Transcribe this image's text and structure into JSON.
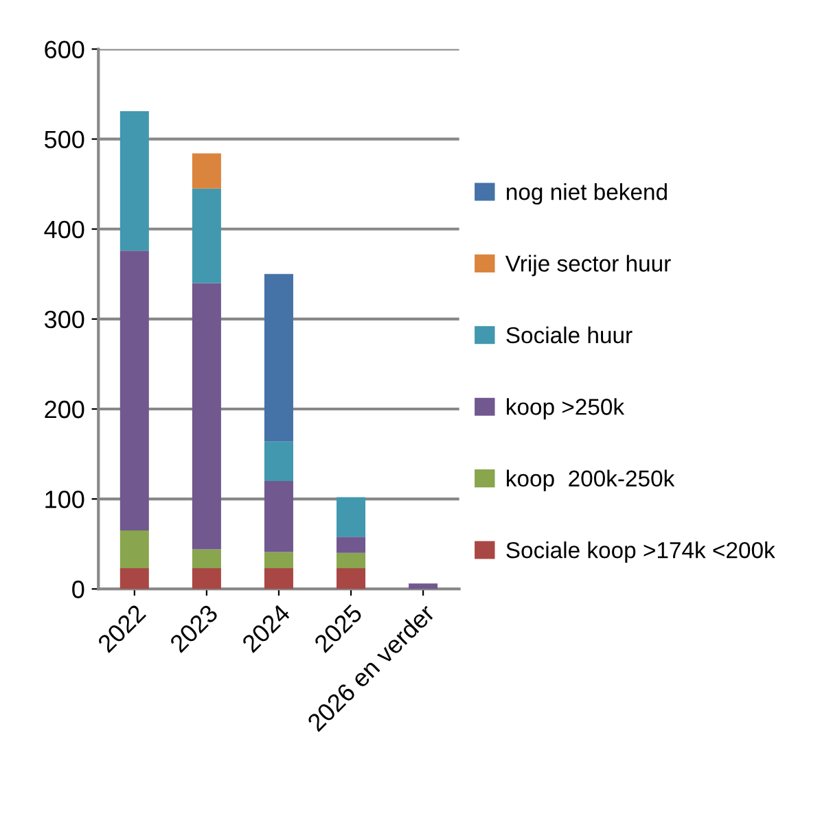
{
  "chart_data": {
    "type": "bar",
    "stacked": true,
    "categories": [
      "2022",
      "2023",
      "2024",
      "2025",
      "2026 en verder"
    ],
    "series": [
      {
        "name": "Sociale koop >174k <200k",
        "color": "#a94744",
        "values": [
          23,
          23,
          23,
          23,
          null
        ]
      },
      {
        "name": "koop  200k-250k",
        "color": "#89a54e",
        "values": [
          42,
          21,
          18,
          17,
          null
        ]
      },
      {
        "name": "koop >250k",
        "color": "#71588f",
        "values": [
          311,
          296,
          79,
          18,
          6
        ]
      },
      {
        "name": "Sociale huur",
        "color": "#4198af",
        "values": [
          155,
          105,
          44,
          44,
          null
        ]
      },
      {
        "name": "Vrije sector huur",
        "color": "#db843d",
        "values": [
          null,
          39,
          null,
          null,
          null
        ]
      },
      {
        "name": "nog niet bekend",
        "color": "#4572a7",
        "values": [
          null,
          null,
          186,
          null,
          null
        ]
      }
    ],
    "ylim": [
      0,
      600
    ],
    "yticks": [
      0,
      100,
      200,
      300,
      400,
      500,
      600
    ],
    "grid": "y",
    "legend": "right"
  }
}
